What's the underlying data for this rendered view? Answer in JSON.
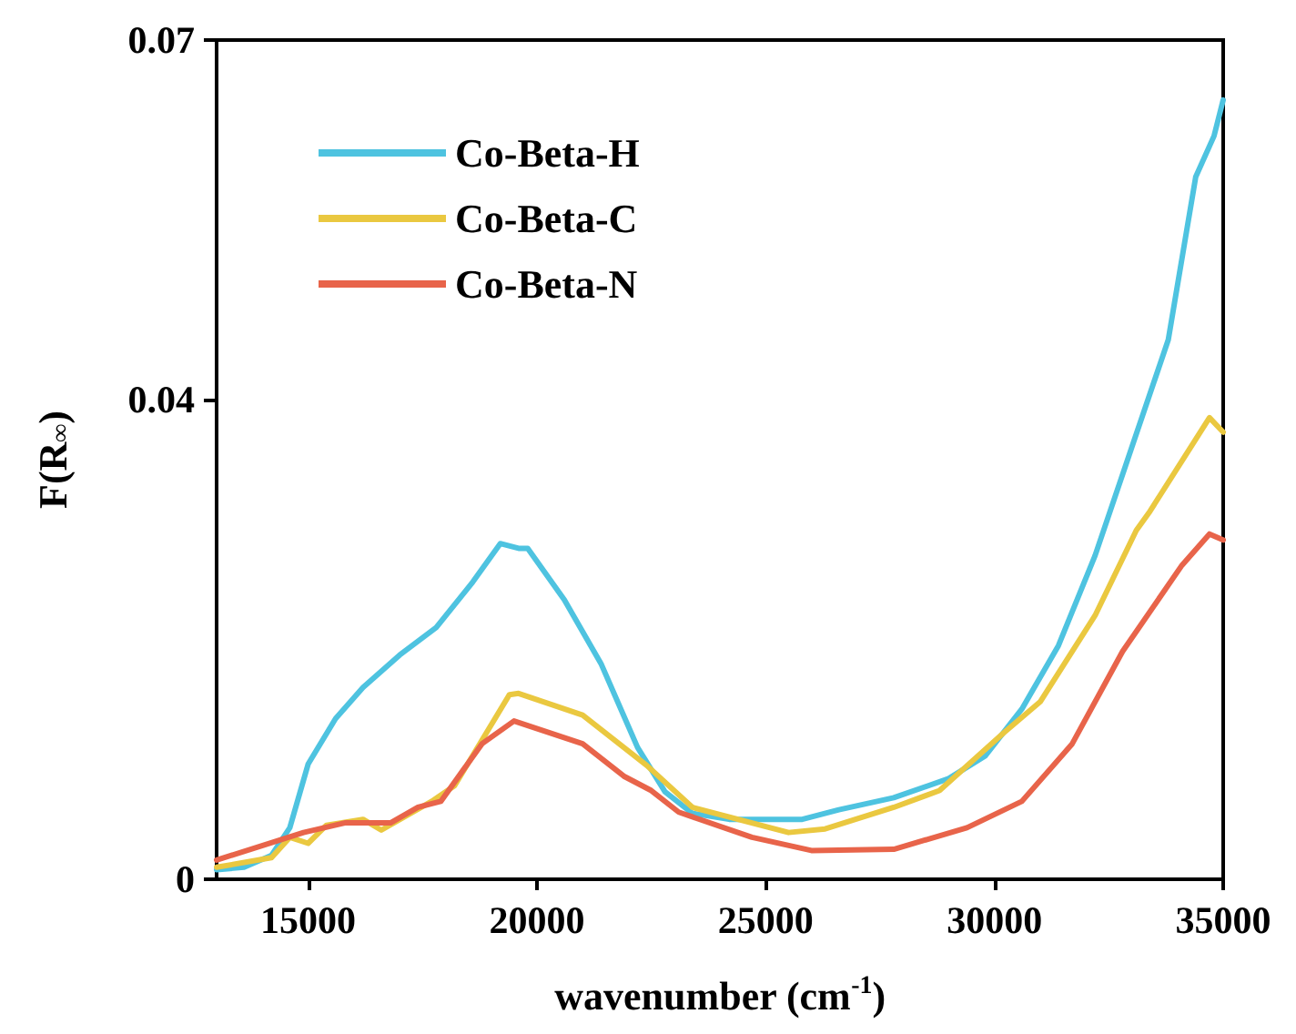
{
  "chart_data": {
    "type": "line",
    "xlabel": "wavenumber (cm$^{-1}$)",
    "ylabel": "F(R$_{∞}$)",
    "xlim": [
      13000,
      35000
    ],
    "xticks": [
      15000,
      20000,
      25000,
      30000,
      35000
    ],
    "ylim": [
      0,
      0.07
    ],
    "yticks": [
      0,
      0.04,
      0.07
    ],
    "grid": false,
    "legend": "top left",
    "marker": "none",
    "line_style": "solid",
    "series": [
      {
        "name": "Co-Beta-H",
        "color": "#4ec3e0",
        "x": [
          13000,
          13600,
          14200,
          14600,
          15000,
          15600,
          16200,
          17000,
          17800,
          18600,
          19200,
          19600,
          19800,
          20600,
          21400,
          22200,
          22800,
          23400,
          24200,
          25800,
          26600,
          27800,
          29000,
          29800,
          30600,
          31400,
          32200,
          33000,
          33800,
          34400,
          34800,
          35000
        ],
        "values": [
          0.0008,
          0.001,
          0.002,
          0.0043,
          0.0096,
          0.0134,
          0.016,
          0.0187,
          0.021,
          0.0248,
          0.028,
          0.0276,
          0.0276,
          0.0233,
          0.018,
          0.011,
          0.0073,
          0.0055,
          0.005,
          0.005,
          0.0058,
          0.0068,
          0.0084,
          0.0103,
          0.0142,
          0.0195,
          0.027,
          0.036,
          0.045,
          0.0586,
          0.062,
          0.065
        ]
      },
      {
        "name": "Co-Beta-C",
        "color": "#eac840",
        "x": [
          13000,
          14200,
          14600,
          15000,
          15400,
          16200,
          16600,
          17700,
          18200,
          19400,
          19600,
          21000,
          22400,
          23400,
          25500,
          26300,
          27800,
          28800,
          30200,
          31000,
          32200,
          33100,
          33400,
          34700,
          35000
        ],
        "values": [
          0.001,
          0.0018,
          0.0035,
          0.003,
          0.0045,
          0.005,
          0.0041,
          0.0065,
          0.0078,
          0.0154,
          0.0155,
          0.0137,
          0.0095,
          0.006,
          0.0039,
          0.0042,
          0.006,
          0.0074,
          0.0122,
          0.0148,
          0.022,
          0.0291,
          0.0307,
          0.0385,
          0.0373
        ]
      },
      {
        "name": "Co-Beta-N",
        "color": "#e8644a",
        "x": [
          13000,
          14900,
          15800,
          16800,
          17400,
          17900,
          18800,
          19500,
          21000,
          21900,
          22500,
          23100,
          24700,
          26000,
          27800,
          29400,
          30600,
          31700,
          32800,
          34100,
          34700,
          35000
        ],
        "values": [
          0.0016,
          0.0039,
          0.0047,
          0.0047,
          0.006,
          0.0065,
          0.0113,
          0.0132,
          0.0113,
          0.0086,
          0.0074,
          0.0056,
          0.0035,
          0.0024,
          0.0025,
          0.0043,
          0.0065,
          0.0113,
          0.019,
          0.0262,
          0.0288,
          0.0283
        ]
      }
    ]
  }
}
